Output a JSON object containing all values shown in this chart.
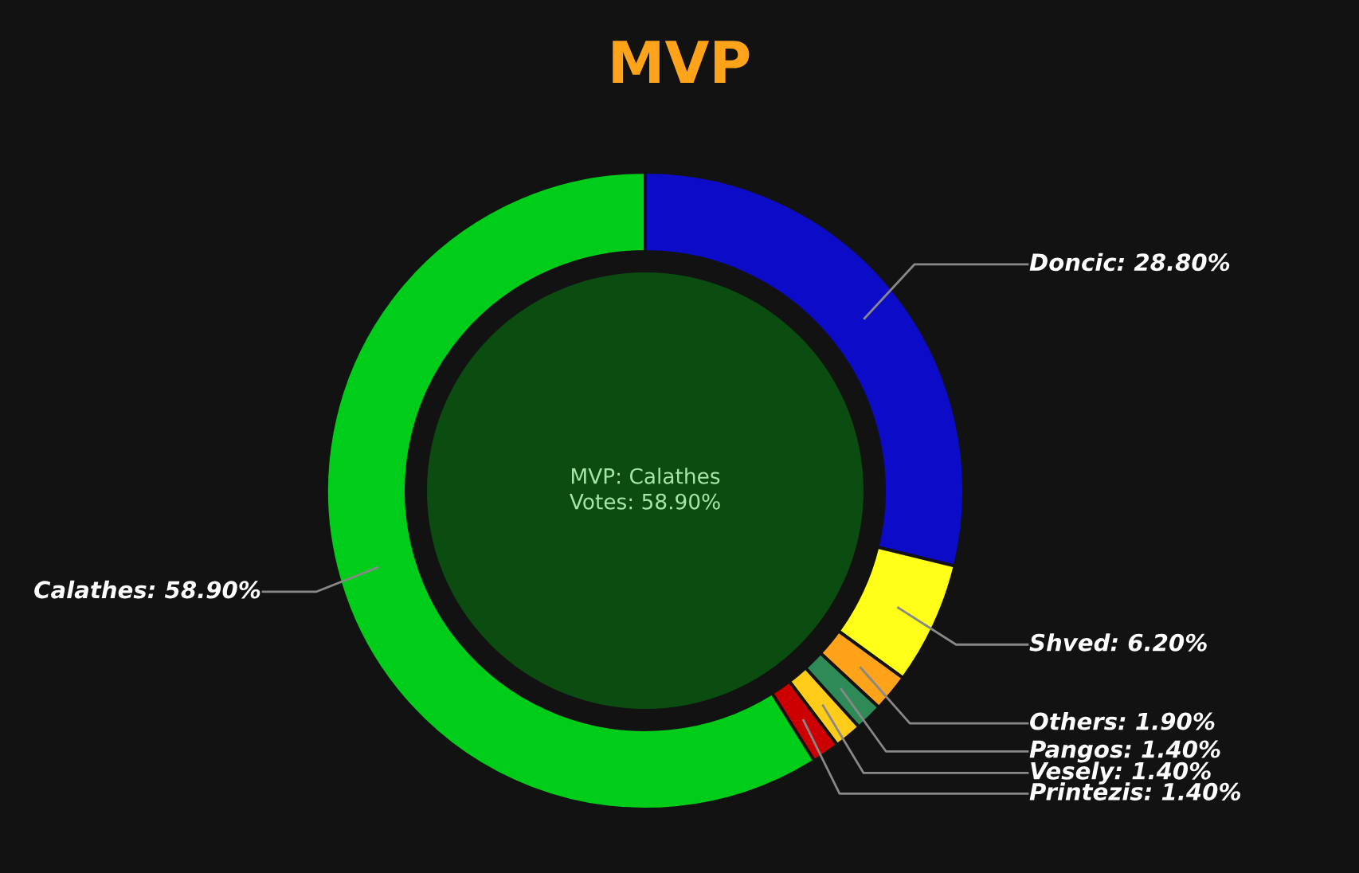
{
  "chart_data": {
    "type": "donut",
    "title": "MVP",
    "categories": [
      "Doncic",
      "Shved",
      "Others",
      "Pangos",
      "Vesely",
      "Printezis",
      "Calathes"
    ],
    "values": [
      28.8,
      6.2,
      1.9,
      1.4,
      1.4,
      1.4,
      58.9
    ],
    "colors": [
      "#0c0cc8",
      "#ffff1a",
      "#ffa31a",
      "#2e8b57",
      "#ffcc1a",
      "#cc0000",
      "#00cc1a"
    ],
    "value_labels": [
      "28.80%",
      "6.20%",
      "1.90%",
      "1.40%",
      "1.40%",
      "1.40%",
      "58.90%"
    ],
    "annotations": [
      "MVP: Calathes",
      "Votes: 58.90%"
    ],
    "legend": false
  }
}
